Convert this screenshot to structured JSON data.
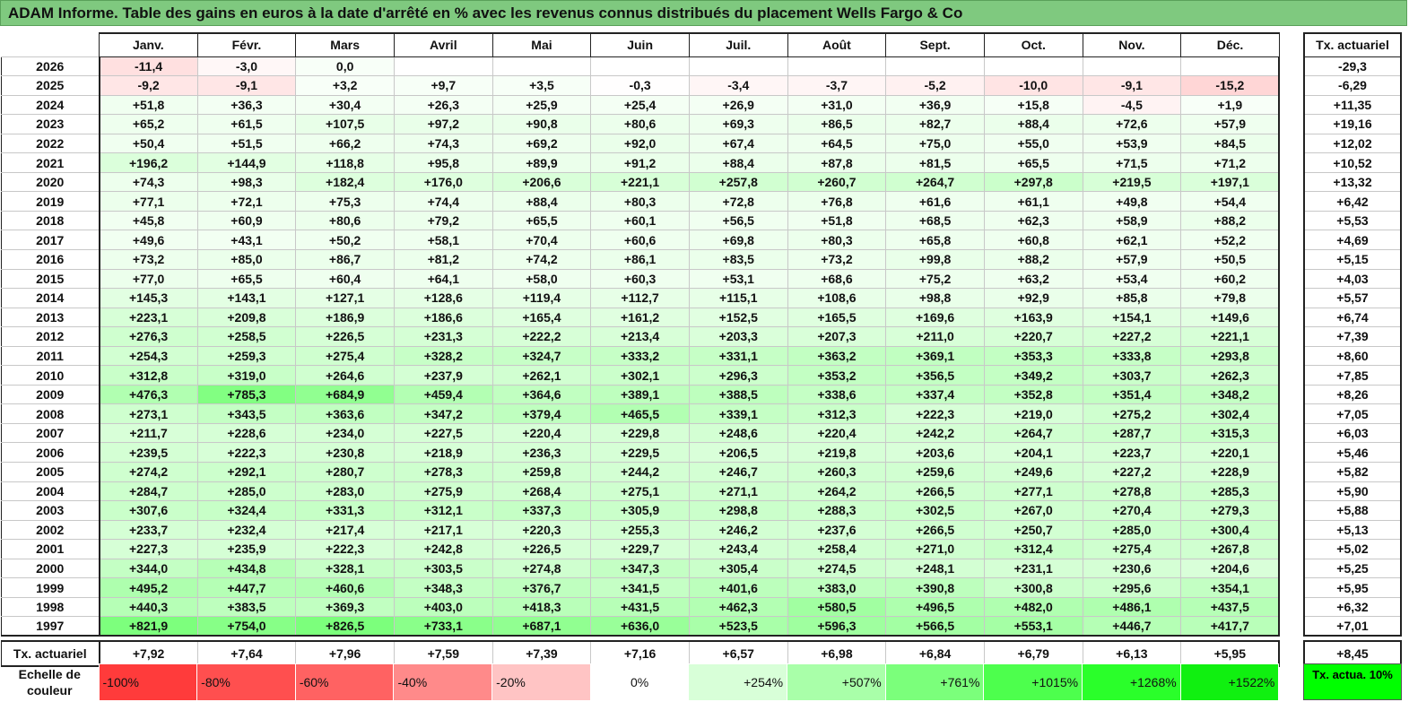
{
  "title": "ADAM Informe. Table des gains en euros à la date d'arrêté en % avec les revenus connus distribués du placement Wells Fargo & Co",
  "months": [
    "Janv.",
    "Févr.",
    "Mars",
    "Avril",
    "Mai",
    "Juin",
    "Juil.",
    "Août",
    "Sept.",
    "Oct.",
    "Nov.",
    "Déc."
  ],
  "tx_header": "Tx. actuariel",
  "rows": [
    {
      "year": "2026",
      "values": [
        "-11,4",
        "-3,0",
        "0,0",
        "",
        "",
        "",
        "",
        "",
        "",
        "",
        "",
        ""
      ],
      "tx": "-29,3"
    },
    {
      "year": "2025",
      "values": [
        "-9,2",
        "-9,1",
        "+3,2",
        "+9,7",
        "+3,5",
        "-0,3",
        "-3,4",
        "-3,7",
        "-5,2",
        "-10,0",
        "-9,1",
        "-15,2"
      ],
      "tx": "-6,29"
    },
    {
      "year": "2024",
      "values": [
        "+51,8",
        "+36,3",
        "+30,4",
        "+26,3",
        "+25,9",
        "+25,4",
        "+26,9",
        "+31,0",
        "+36,9",
        "+15,8",
        "-4,5",
        "+1,9"
      ],
      "tx": "+11,35"
    },
    {
      "year": "2023",
      "values": [
        "+65,2",
        "+61,5",
        "+107,5",
        "+97,2",
        "+90,8",
        "+80,6",
        "+69,3",
        "+86,5",
        "+82,7",
        "+88,4",
        "+72,6",
        "+57,9"
      ],
      "tx": "+19,16"
    },
    {
      "year": "2022",
      "values": [
        "+50,4",
        "+51,5",
        "+66,2",
        "+74,3",
        "+69,2",
        "+92,0",
        "+67,4",
        "+64,5",
        "+75,0",
        "+55,0",
        "+53,9",
        "+84,5"
      ],
      "tx": "+12,02"
    },
    {
      "year": "2021",
      "values": [
        "+196,2",
        "+144,9",
        "+118,8",
        "+95,8",
        "+89,9",
        "+91,2",
        "+88,4",
        "+87,8",
        "+81,5",
        "+65,5",
        "+71,5",
        "+71,2"
      ],
      "tx": "+10,52"
    },
    {
      "year": "2020",
      "values": [
        "+74,3",
        "+98,3",
        "+182,4",
        "+176,0",
        "+206,6",
        "+221,1",
        "+257,8",
        "+260,7",
        "+264,7",
        "+297,8",
        "+219,5",
        "+197,1"
      ],
      "tx": "+13,32"
    },
    {
      "year": "2019",
      "values": [
        "+77,1",
        "+72,1",
        "+75,3",
        "+74,4",
        "+88,4",
        "+80,3",
        "+72,8",
        "+76,8",
        "+61,6",
        "+61,1",
        "+49,8",
        "+54,4"
      ],
      "tx": "+6,42"
    },
    {
      "year": "2018",
      "values": [
        "+45,8",
        "+60,9",
        "+80,6",
        "+79,2",
        "+65,5",
        "+60,1",
        "+56,5",
        "+51,8",
        "+68,5",
        "+62,3",
        "+58,9",
        "+88,2"
      ],
      "tx": "+5,53"
    },
    {
      "year": "2017",
      "values": [
        "+49,6",
        "+43,1",
        "+50,2",
        "+58,1",
        "+70,4",
        "+60,6",
        "+69,8",
        "+80,3",
        "+65,8",
        "+60,8",
        "+62,1",
        "+52,2"
      ],
      "tx": "+4,69"
    },
    {
      "year": "2016",
      "values": [
        "+73,2",
        "+85,0",
        "+86,7",
        "+81,2",
        "+74,2",
        "+86,1",
        "+83,5",
        "+73,2",
        "+99,8",
        "+88,2",
        "+57,9",
        "+50,5"
      ],
      "tx": "+5,15"
    },
    {
      "year": "2015",
      "values": [
        "+77,0",
        "+65,5",
        "+60,4",
        "+64,1",
        "+58,0",
        "+60,3",
        "+53,1",
        "+68,6",
        "+75,2",
        "+63,2",
        "+53,4",
        "+60,2"
      ],
      "tx": "+4,03"
    },
    {
      "year": "2014",
      "values": [
        "+145,3",
        "+143,1",
        "+127,1",
        "+128,6",
        "+119,4",
        "+112,7",
        "+115,1",
        "+108,6",
        "+98,8",
        "+92,9",
        "+85,8",
        "+79,8"
      ],
      "tx": "+5,57"
    },
    {
      "year": "2013",
      "values": [
        "+223,1",
        "+209,8",
        "+186,9",
        "+186,6",
        "+165,4",
        "+161,2",
        "+152,5",
        "+165,5",
        "+169,6",
        "+163,9",
        "+154,1",
        "+149,6"
      ],
      "tx": "+6,74"
    },
    {
      "year": "2012",
      "values": [
        "+276,3",
        "+258,5",
        "+226,5",
        "+231,3",
        "+222,2",
        "+213,4",
        "+203,3",
        "+207,3",
        "+211,0",
        "+220,7",
        "+227,2",
        "+221,1"
      ],
      "tx": "+7,39"
    },
    {
      "year": "2011",
      "values": [
        "+254,3",
        "+259,3",
        "+275,4",
        "+328,2",
        "+324,7",
        "+333,2",
        "+331,1",
        "+363,2",
        "+369,1",
        "+353,3",
        "+333,8",
        "+293,8"
      ],
      "tx": "+8,60"
    },
    {
      "year": "2010",
      "values": [
        "+312,8",
        "+319,0",
        "+264,6",
        "+237,9",
        "+262,1",
        "+302,1",
        "+296,3",
        "+353,2",
        "+356,5",
        "+349,2",
        "+303,7",
        "+262,3"
      ],
      "tx": "+7,85"
    },
    {
      "year": "2009",
      "values": [
        "+476,3",
        "+785,3",
        "+684,9",
        "+459,4",
        "+364,6",
        "+389,1",
        "+388,5",
        "+338,6",
        "+337,4",
        "+352,8",
        "+351,4",
        "+348,2"
      ],
      "tx": "+8,26"
    },
    {
      "year": "2008",
      "values": [
        "+273,1",
        "+343,5",
        "+363,6",
        "+347,2",
        "+379,4",
        "+465,5",
        "+339,1",
        "+312,3",
        "+222,3",
        "+219,0",
        "+275,2",
        "+302,4"
      ],
      "tx": "+7,05"
    },
    {
      "year": "2007",
      "values": [
        "+211,7",
        "+228,6",
        "+234,0",
        "+227,5",
        "+220,4",
        "+229,8",
        "+248,6",
        "+220,4",
        "+242,2",
        "+264,7",
        "+287,7",
        "+315,3"
      ],
      "tx": "+6,03"
    },
    {
      "year": "2006",
      "values": [
        "+239,5",
        "+222,3",
        "+230,8",
        "+218,9",
        "+236,3",
        "+229,5",
        "+206,5",
        "+219,8",
        "+203,6",
        "+204,1",
        "+223,7",
        "+220,1"
      ],
      "tx": "+5,46"
    },
    {
      "year": "2005",
      "values": [
        "+274,2",
        "+292,1",
        "+280,7",
        "+278,3",
        "+259,8",
        "+244,2",
        "+246,7",
        "+260,3",
        "+259,6",
        "+249,6",
        "+227,2",
        "+228,9"
      ],
      "tx": "+5,82"
    },
    {
      "year": "2004",
      "values": [
        "+284,7",
        "+285,0",
        "+283,0",
        "+275,9",
        "+268,4",
        "+275,1",
        "+271,1",
        "+264,2",
        "+266,5",
        "+277,1",
        "+278,8",
        "+285,3"
      ],
      "tx": "+5,90"
    },
    {
      "year": "2003",
      "values": [
        "+307,6",
        "+324,4",
        "+331,3",
        "+312,1",
        "+337,3",
        "+305,9",
        "+298,8",
        "+288,3",
        "+302,5",
        "+267,0",
        "+270,4",
        "+279,3"
      ],
      "tx": "+5,88"
    },
    {
      "year": "2002",
      "values": [
        "+233,7",
        "+232,4",
        "+217,4",
        "+217,1",
        "+220,3",
        "+255,3",
        "+246,2",
        "+237,6",
        "+266,5",
        "+250,7",
        "+285,0",
        "+300,4"
      ],
      "tx": "+5,13"
    },
    {
      "year": "2001",
      "values": [
        "+227,3",
        "+235,9",
        "+222,3",
        "+242,8",
        "+226,5",
        "+229,7",
        "+243,4",
        "+258,4",
        "+271,0",
        "+312,4",
        "+275,4",
        "+267,8"
      ],
      "tx": "+5,02"
    },
    {
      "year": "2000",
      "values": [
        "+344,0",
        "+434,8",
        "+328,1",
        "+303,5",
        "+274,8",
        "+347,3",
        "+305,4",
        "+274,5",
        "+248,1",
        "+231,1",
        "+230,6",
        "+204,6"
      ],
      "tx": "+5,25"
    },
    {
      "year": "1999",
      "values": [
        "+495,2",
        "+447,7",
        "+460,6",
        "+348,3",
        "+376,7",
        "+341,5",
        "+401,6",
        "+383,0",
        "+390,8",
        "+300,8",
        "+295,6",
        "+354,1"
      ],
      "tx": "+5,95"
    },
    {
      "year": "1998",
      "values": [
        "+440,3",
        "+383,5",
        "+369,3",
        "+403,0",
        "+418,3",
        "+431,5",
        "+462,3",
        "+580,5",
        "+496,5",
        "+482,0",
        "+486,1",
        "+437,5"
      ],
      "tx": "+6,32"
    },
    {
      "year": "1997",
      "values": [
        "+821,9",
        "+754,0",
        "+826,5",
        "+733,1",
        "+687,1",
        "+636,0",
        "+523,5",
        "+596,3",
        "+566,5",
        "+553,1",
        "+446,7",
        "+417,7"
      ],
      "tx": "+7,01"
    }
  ],
  "footer": {
    "label": "Tx. actuariel",
    "values": [
      "+7,92",
      "+7,64",
      "+7,96",
      "+7,59",
      "+7,39",
      "+7,16",
      "+6,57",
      "+6,98",
      "+6,84",
      "+6,79",
      "+6,13",
      "+5,95"
    ],
    "tx": "+8,45"
  },
  "scale": {
    "label": "Echelle de couleur",
    "steps": [
      {
        "text": "-100%",
        "color": "#ff3b3b",
        "align": "left"
      },
      {
        "text": "-80%",
        "color": "#ff4f4f",
        "align": "left"
      },
      {
        "text": "-60%",
        "color": "#ff6262",
        "align": "left"
      },
      {
        "text": "-40%",
        "color": "#ff8a8a",
        "align": "left"
      },
      {
        "text": "-20%",
        "color": "#ffc4c4",
        "align": "left"
      },
      {
        "text": "0%",
        "color": "#ffffff",
        "align": "center"
      },
      {
        "text": "+254%",
        "color": "#d8ffd8",
        "align": "right"
      },
      {
        "text": "+507%",
        "color": "#a9ffa9",
        "align": "right"
      },
      {
        "text": "+761%",
        "color": "#7bff7b",
        "align": "right"
      },
      {
        "text": "+1015%",
        "color": "#4dff4d",
        "align": "right"
      },
      {
        "text": "+1268%",
        "color": "#2aff2a",
        "align": "right"
      },
      {
        "text": "+1522%",
        "color": "#10f010",
        "align": "right"
      }
    ],
    "tx_label": "Tx. actua. 10%",
    "tx_color": "#00ff00"
  },
  "colors": {
    "title_bg": "#7fc97f",
    "positive_max": "#00ff00",
    "negative_max": "#ff3b3b"
  }
}
